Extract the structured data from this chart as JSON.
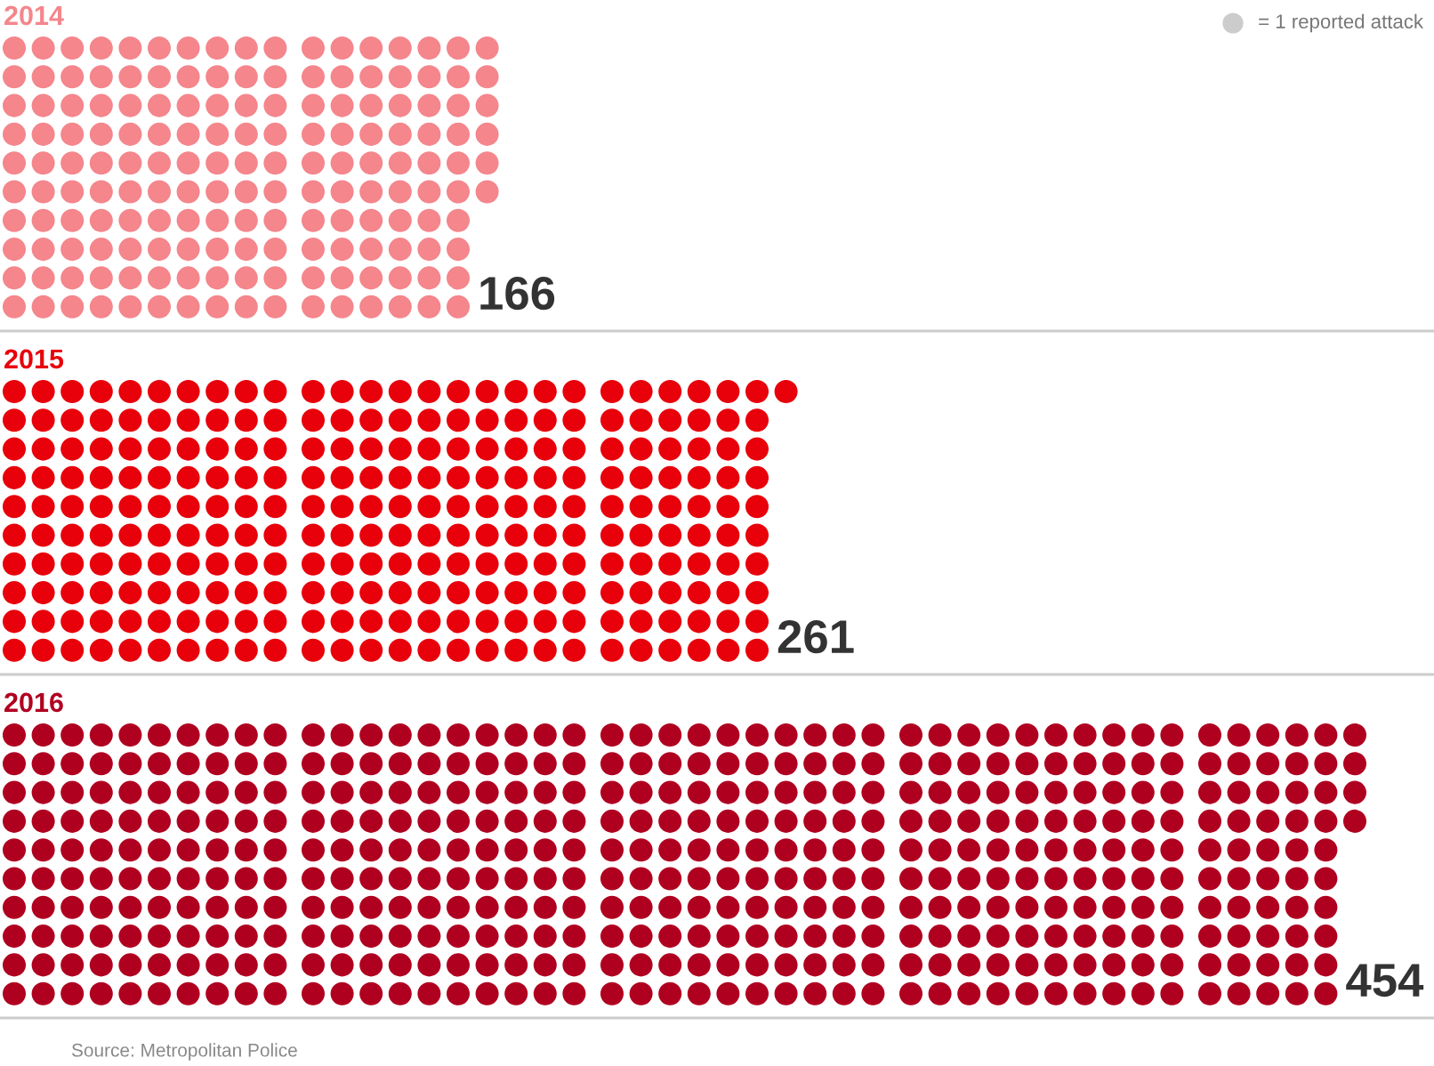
{
  "chart_data": [
    {
      "type": "other",
      "title": "2014",
      "categories": [
        null
      ],
      "values": [
        166
      ],
      "colors": [
        "#f4868c"
      ],
      "data_labels": true,
      "annotations": [
        "= 1 reported attack"
      ]
    },
    {
      "type": "other",
      "title": "2015",
      "categories": [
        null
      ],
      "values": [
        261
      ],
      "colors": [
        "#e8000b"
      ],
      "data_labels": true
    },
    {
      "type": "other",
      "title": "2016",
      "categories": [
        null
      ],
      "values": [
        454
      ],
      "colors": [
        "#b00020"
      ],
      "data_labels": true,
      "annotations": [
        "Source: Metropolitan Police"
      ]
    }
  ]
}
